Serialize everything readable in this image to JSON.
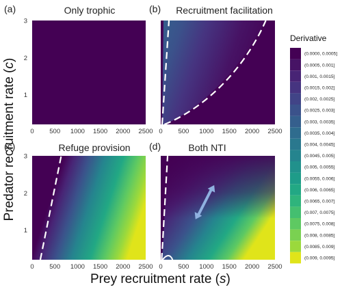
{
  "chart_data": {
    "type": "heatmap",
    "xlabel": "Prey recruitment rate (s)",
    "ylabel": "Predator recruitment rate (c)",
    "xlabel_parts": [
      "Prey recruitment rate (",
      "s",
      ")"
    ],
    "ylabel_parts": [
      "Predator recruitment rate (",
      "c",
      ")"
    ],
    "xlim": [
      0,
      2500
    ],
    "ylim": [
      0.2,
      3
    ],
    "x_ticks": [
      "0",
      "500",
      "1000",
      "1500",
      "2000",
      "2500"
    ],
    "x_tick_values": [
      0,
      500,
      1000,
      1500,
      2000,
      2500
    ],
    "y_ticks": [
      "1",
      "2",
      "3"
    ],
    "y_tick_values": [
      1,
      2,
      3
    ],
    "legend": {
      "title": "Derivative",
      "position": "right",
      "bins": [
        "(0.0000, 0.0005]",
        "(0.0005, 0.001]",
        "(0.001, 0.0015]",
        "(0.0015, 0.002]",
        "(0.002, 0.0025]",
        "(0.0025, 0.003]",
        "(0.003, 0.0035]",
        "(0.0035, 0.004]",
        "(0.004, 0.0045]",
        "(0.0045, 0.005]",
        "(0.005, 0.0055]",
        "(0.0055, 0.006]",
        "(0.006, 0.0065]",
        "(0.0065, 0.007]",
        "(0.007, 0.0075]",
        "(0.0075, 0.008]",
        "(0.008, 0.0085]",
        "(0.0085, 0.009]",
        "(0.009, 0.0095]"
      ],
      "colors": [
        "#440154",
        "#471365",
        "#482475",
        "#463480",
        "#414487",
        "#3b528b",
        "#355f8d",
        "#2f6c8e",
        "#2a788e",
        "#25848e",
        "#21918c",
        "#1e9c89",
        "#22a884",
        "#2fb47c",
        "#44bf70",
        "#5ec962",
        "#7ad151",
        "#9bd93c",
        "#e0e41a"
      ]
    },
    "panels": [
      {
        "tag": "(a)",
        "title": "Only trophic",
        "max_derivative": 0.0005,
        "dashed_boundary": false
      },
      {
        "tag": "(b)",
        "title": "Recruitment facilitation",
        "max_derivative": 0.0035,
        "dashed_boundary": true
      },
      {
        "tag": "(c)",
        "title": "Refuge provision",
        "max_derivative": 0.0095,
        "dashed_boundary": true
      },
      {
        "tag": "(d)",
        "title": "Both NTI",
        "max_derivative": 0.0095,
        "dashed_boundary": true,
        "annotation": "double-headed-arrow"
      }
    ]
  }
}
